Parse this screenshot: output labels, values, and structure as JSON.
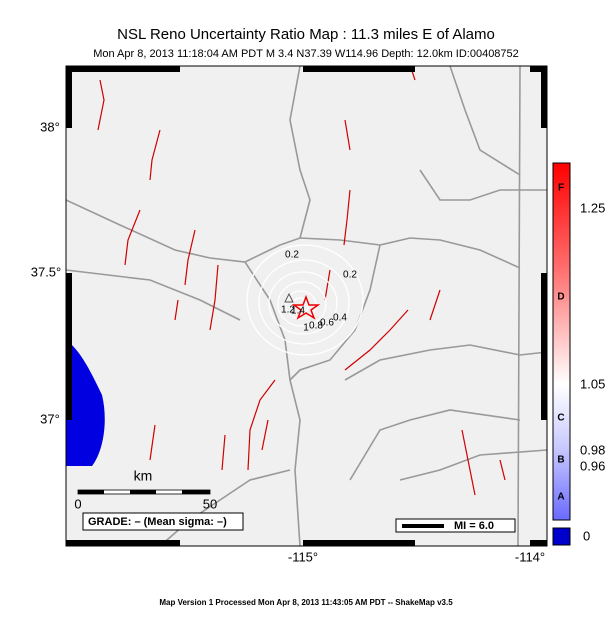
{
  "header": {
    "title": "NSL Reno Uncertainty Ratio Map : 11.3 miles E of Alamo",
    "subtitle": "Mon Apr  8, 2013 11:18:04 AM PDT   M 3.4   N37.39 W114.96   Depth: 12.0km   ID:00408752"
  },
  "map": {
    "lat_labels": [
      "38°",
      "37.5°",
      "37°"
    ],
    "lon_labels": [
      "-115°",
      "-114°"
    ],
    "contour_labels": [
      "0.2",
      "0.2",
      "1.4",
      "1.2",
      "1",
      "0.8",
      "0.6",
      "0.4"
    ]
  },
  "colorbar": {
    "letters": [
      "F",
      "D",
      "C",
      "B",
      "A"
    ],
    "values": [
      "1.25",
      "1.05",
      "0.98",
      "0.96"
    ],
    "zero": "0"
  },
  "scale": {
    "unit": "km",
    "start": "0",
    "end": "50"
  },
  "grade": "GRADE: – (Mean sigma: –)",
  "legend": "MI = 6.0",
  "footer": "Map Version 1 Processed Mon Apr  8, 2013 11:43:05 AM PDT  --  ShakeMap v3.5"
}
